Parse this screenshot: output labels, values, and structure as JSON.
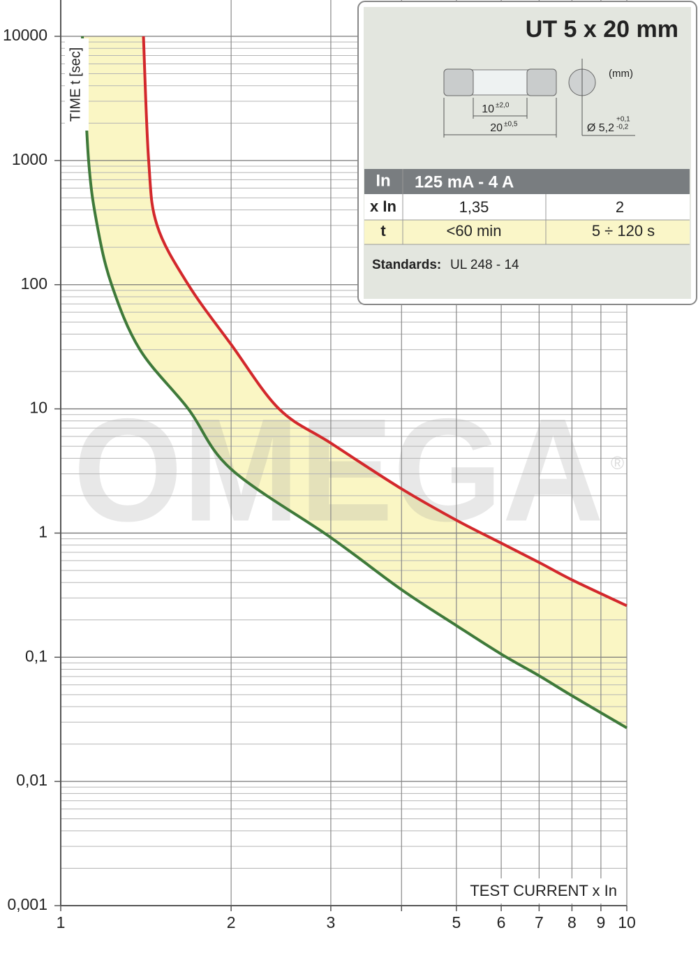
{
  "chart_data": {
    "type": "line",
    "ylabel": "TIME t [sec]",
    "xlabel": "TEST CURRENT x In",
    "xscale": "log",
    "yscale": "log",
    "xlim": [
      1,
      10
    ],
    "xticks": [
      1,
      2,
      3,
      {
        "value": 4,
        "label": null
      },
      5,
      6,
      7,
      8,
      9,
      10
    ],
    "ylim": [
      0.001,
      10000
    ],
    "yticks": [
      {
        "value": 0.001,
        "label": "0,001"
      },
      {
        "value": 0.01,
        "label": "0,01"
      },
      {
        "value": 0.1,
        "label": "0,1"
      },
      1,
      10,
      100,
      1000,
      10000
    ],
    "grid": true,
    "band_color": "#faf6c4",
    "series": [
      {
        "color": "#d3282c",
        "x": [
          1.4,
          1.43,
          1.48,
          1.68,
          2,
          2.43,
          3,
          4,
          5,
          6,
          7,
          8,
          10
        ],
        "values": [
          10000,
          1000,
          300,
          100,
          33,
          10,
          5.3,
          2.27,
          1.27,
          0.83,
          0.58,
          0.42,
          0.26
        ]
      },
      {
        "color": "#3f7a3a",
        "x": [
          1.092,
          1.12,
          1.16,
          1.23,
          1.38,
          1.68,
          2,
          3,
          4,
          5,
          6,
          7,
          8,
          10
        ],
        "values": [
          10000,
          1000,
          300,
          100,
          30,
          10,
          3.27,
          0.92,
          0.35,
          0.18,
          0.106,
          0.071,
          0.049,
          0.027
        ]
      }
    ]
  },
  "watermark": {
    "text": "OMEGA",
    "mark": "®"
  },
  "info_panel": {
    "title": "UT 5 x 20 mm",
    "unit": "(mm)",
    "dims": [
      {
        "value": "10",
        "tol": "±2,0"
      },
      {
        "value": "20",
        "tol": "±0,5"
      }
    ],
    "diameter": {
      "value": "Ø 5,2",
      "tol_plus": "+0,1",
      "tol_minus": "-0,2"
    },
    "table": {
      "rows": [
        [
          "In",
          "125 mA - 4 A"
        ],
        [
          "x In",
          "1,35",
          "2"
        ],
        [
          "t",
          "<60 min",
          "5 ÷ 120 s"
        ]
      ]
    },
    "standards": {
      "label": "Standards:",
      "value": "UL 248 - 14"
    }
  }
}
